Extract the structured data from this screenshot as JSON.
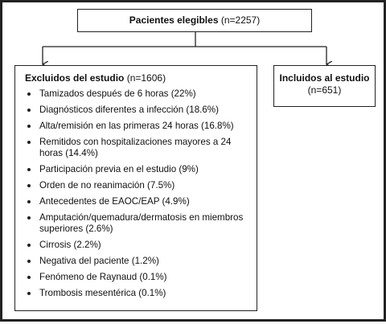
{
  "nodes": [
    {
      "label": "Pacientes elegibles",
      "count": "(n=2257)"
    },
    {
      "label": "Excluidos del estudio",
      "count": "(n=1606)",
      "items": [
        "Tamizados después de 6 horas (22%)",
        "Diagnósticos diferentes a infección (18.6%)",
        "Alta/remisión en las primeras 24 horas (16.8%)",
        "Remitidos con hospitalizaciones mayores a 24 horas (14.4%)",
        "Participación previa en el estudio (9%)",
        "Orden de no reanimación (7.5%)",
        "Antecedentes de EAOC/EAP (4.9%)",
        "Amputación/quemadura/dermatosis en miembros superiores (2.6%)",
        "Cirrosis (2.2%)",
        "Negativa del paciente (1.2%)",
        "Fenómeno de Raynaud (0.1%)",
        "Trombosis mesentérica (0.1%)"
      ]
    },
    {
      "label": "Incluidos al estudio",
      "count": "(n=651)"
    }
  ]
}
